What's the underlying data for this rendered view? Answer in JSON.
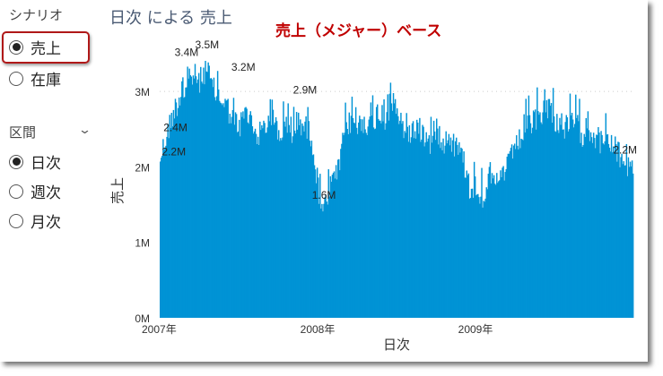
{
  "slicer_scenario": {
    "title": "シナリオ",
    "options": [
      "売上",
      "在庫"
    ],
    "selected": 0
  },
  "slicer_period": {
    "title": "区間",
    "options": [
      "日次",
      "週次",
      "月次"
    ],
    "selected": 0
  },
  "chart_title": "日次 による 売上",
  "annotation": "売上（メジャー）ベース",
  "colors": {
    "bar": "#0093d5",
    "highlight": "#b01818",
    "annotation": "#c00000"
  },
  "chart_data": {
    "type": "bar",
    "title": "日次 による 売上",
    "xlabel": "日次",
    "ylabel": "売上",
    "ylim": [
      0,
      3.5
    ],
    "yticks": [
      {
        "v": 0,
        "label": "0M"
      },
      {
        "v": 1,
        "label": "1M"
      },
      {
        "v": 2,
        "label": "2M"
      },
      {
        "v": 3,
        "label": "3M"
      }
    ],
    "xticks": [
      {
        "v": 0,
        "label": "2007年"
      },
      {
        "v": 1,
        "label": "2008年"
      },
      {
        "v": 2,
        "label": "2009年"
      }
    ],
    "x_range_years": [
      0,
      3
    ],
    "series_unit": "M, semi-monthly approx from 2007-01",
    "values": [
      2.3,
      2.6,
      2.9,
      3.1,
      3.2,
      3.4,
      3.3,
      3.5,
      3.2,
      3.1,
      3.0,
      2.8,
      2.7,
      2.9,
      2.7,
      2.6,
      2.7,
      2.9,
      2.6,
      2.7,
      2.6,
      2.8,
      2.7,
      2.6,
      1.9,
      1.6,
      1.9,
      2.1,
      2.6,
      2.8,
      2.7,
      2.8,
      2.7,
      2.9,
      2.8,
      3.0,
      2.8,
      2.7,
      2.6,
      2.7,
      2.6,
      2.5,
      2.7,
      2.5,
      2.6,
      2.4,
      2.3,
      1.9,
      1.9,
      1.8,
      2.0,
      1.9,
      2.1,
      2.2,
      2.4,
      2.6,
      2.7,
      2.8,
      2.9,
      3.0,
      2.8,
      2.7,
      2.7,
      2.8,
      2.6,
      2.7,
      2.6,
      2.5,
      2.5,
      2.4,
      2.3,
      2.2
    ],
    "data_labels": [
      {
        "t": 0.01,
        "v": 2.2,
        "label": "2.2M"
      },
      {
        "t": 0.1,
        "v": 2.4,
        "label": "2.4M"
      },
      {
        "t": 0.17,
        "v": 3.4,
        "label": "3.4M"
      },
      {
        "t": 0.3,
        "v": 3.5,
        "label": "3.5M"
      },
      {
        "t": 0.53,
        "v": 3.2,
        "label": "3.2M"
      },
      {
        "t": 0.92,
        "v": 2.9,
        "label": "2.9M"
      },
      {
        "t": 1.04,
        "v": 1.6,
        "label": "1.6M"
      },
      {
        "t": 2.97,
        "v": 2.2,
        "label": "2.2M"
      }
    ],
    "grid": "dotted at 3M"
  }
}
